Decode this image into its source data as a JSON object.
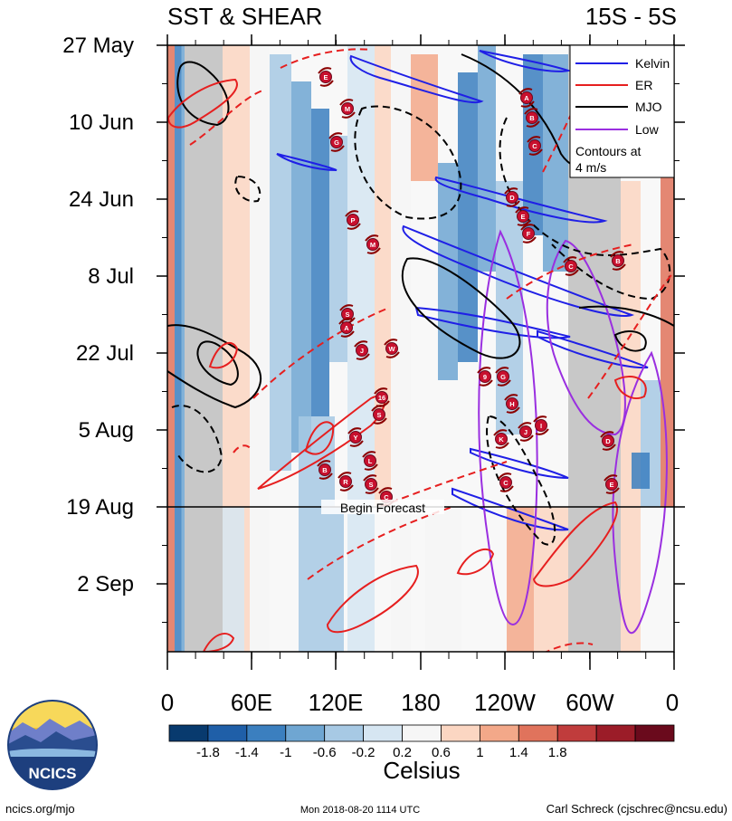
{
  "chart_data": {
    "type": "heatmap",
    "title_left": "SST & SHEAR",
    "title_right": "15S - 5S",
    "x_ticks": [
      "0",
      "60E",
      "120E",
      "180",
      "120W",
      "60W",
      "0"
    ],
    "y_ticks": [
      "27 May",
      "10 Jun",
      "24 Jun",
      "8 Jul",
      "22 Jul",
      "5 Aug",
      "19 Aug",
      "2 Sep"
    ],
    "forecast_label": "Begin Forecast",
    "forecast_line_date": "19 Aug",
    "legend": {
      "entries": [
        {
          "name": "Kelvin",
          "color": "#1f1fe6"
        },
        {
          "name": "ER",
          "color": "#e61f1f"
        },
        {
          "name": "MJO",
          "color": "#000000"
        },
        {
          "name": "Low",
          "color": "#9a2fe0"
        }
      ],
      "note_line1": "Contours at",
      "note_line2": "4 m/s",
      "placement": "top-right"
    },
    "colorbar": {
      "ticks": [
        "-1.8",
        "-1.4",
        "-1",
        "-0.6",
        "-0.2",
        "0.2",
        "0.6",
        "1",
        "1.4",
        "1.8"
      ],
      "colors": [
        "#083a6e",
        "#1f5fa8",
        "#3b7fbf",
        "#6fa6d2",
        "#a7c9e4",
        "#d6e6f2",
        "#f6f6f6",
        "#fbd6c2",
        "#f3a889",
        "#e0735c",
        "#c03c3c",
        "#9b1c28",
        "#6a0a1c"
      ],
      "label": "Celsius"
    },
    "storms": [
      "E",
      "A",
      "M",
      "B",
      "C",
      "G",
      "D",
      "E",
      "F",
      "P",
      "M",
      "C",
      "B",
      "S",
      "A",
      "W",
      "J",
      "9",
      "G",
      "H",
      "J",
      "I",
      "K",
      "D",
      "16",
      "S",
      "Y",
      "L",
      "B",
      "R",
      "S",
      "C",
      "E",
      "C"
    ]
  },
  "logo": {
    "text": "NCICS",
    "colors": {
      "sky": "#f2c029",
      "mountain": "#2a4d8f",
      "water": "#8bb8e0"
    }
  },
  "footer": {
    "left": "ncics.org/mjo",
    "center": "Mon 2018-08-20 1114 UTC",
    "right": "Carl Schreck (cjschrec@ncsu.edu)"
  }
}
